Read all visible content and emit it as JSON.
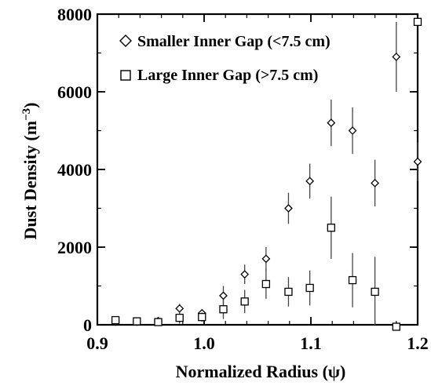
{
  "chart_data": {
    "type": "scatter",
    "xlabel": "Normalized Radius (ψ)",
    "ylabel_main": "Dust Density (m",
    "ylabel_exp": "−3",
    "ylabel_close": ")",
    "xlim": [
      0.9,
      1.2
    ],
    "ylim": [
      0,
      8000
    ],
    "x_ticks": [
      0.9,
      1.0,
      1.1,
      1.2
    ],
    "x_tick_labels": [
      "0.9",
      "1.0",
      "1.1",
      "1.2"
    ],
    "y_ticks": [
      0,
      2000,
      4000,
      6000,
      8000
    ],
    "y_tick_labels": [
      "0",
      "2000",
      "4000",
      "6000",
      "8000"
    ],
    "legend_position": "top-left",
    "series": [
      {
        "name": "Smaller Inner Gap (<7.5 cm)",
        "marker": "diamond",
        "points": [
          {
            "x": 0.917,
            "y": 80,
            "err": 20
          },
          {
            "x": 0.937,
            "y": 80,
            "err": 20
          },
          {
            "x": 0.957,
            "y": 100,
            "err": 30
          },
          {
            "x": 0.977,
            "y": 420,
            "err": 120
          },
          {
            "x": 0.998,
            "y": 300,
            "err": 80
          },
          {
            "x": 1.018,
            "y": 750,
            "err": 250
          },
          {
            "x": 1.038,
            "y": 1300,
            "err": 250
          },
          {
            "x": 1.058,
            "y": 1700,
            "err": 300
          },
          {
            "x": 1.079,
            "y": 3000,
            "err": 400
          },
          {
            "x": 1.099,
            "y": 3700,
            "err": 450
          },
          {
            "x": 1.119,
            "y": 5200,
            "err": 600
          },
          {
            "x": 1.139,
            "y": 5000,
            "err": 600
          },
          {
            "x": 1.16,
            "y": 3650,
            "err": 600
          },
          {
            "x": 1.18,
            "y": 6900,
            "err": 900
          },
          {
            "x": 1.2,
            "y": 4200,
            "err": 500
          }
        ]
      },
      {
        "name": "Large Inner Gap (>7.5 cm)",
        "marker": "square",
        "points": [
          {
            "x": 0.917,
            "y": 120,
            "err": 80
          },
          {
            "x": 0.937,
            "y": 90,
            "err": 60
          },
          {
            "x": 0.957,
            "y": 70,
            "err": 50
          },
          {
            "x": 0.977,
            "y": 180,
            "err": 150
          },
          {
            "x": 0.998,
            "y": 200,
            "err": 120
          },
          {
            "x": 1.018,
            "y": 400,
            "err": 250
          },
          {
            "x": 1.038,
            "y": 600,
            "err": 300
          },
          {
            "x": 1.058,
            "y": 1050,
            "err": 380
          },
          {
            "x": 1.079,
            "y": 850,
            "err": 380
          },
          {
            "x": 1.099,
            "y": 950,
            "err": 450
          },
          {
            "x": 1.119,
            "y": 2500,
            "err": 800
          },
          {
            "x": 1.139,
            "y": 1150,
            "err": 700
          },
          {
            "x": 1.16,
            "y": 850,
            "err": 900
          },
          {
            "x": 1.18,
            "y": -50,
            "err": 0
          },
          {
            "x": 1.2,
            "y": 7800,
            "err": 0
          }
        ]
      }
    ]
  }
}
